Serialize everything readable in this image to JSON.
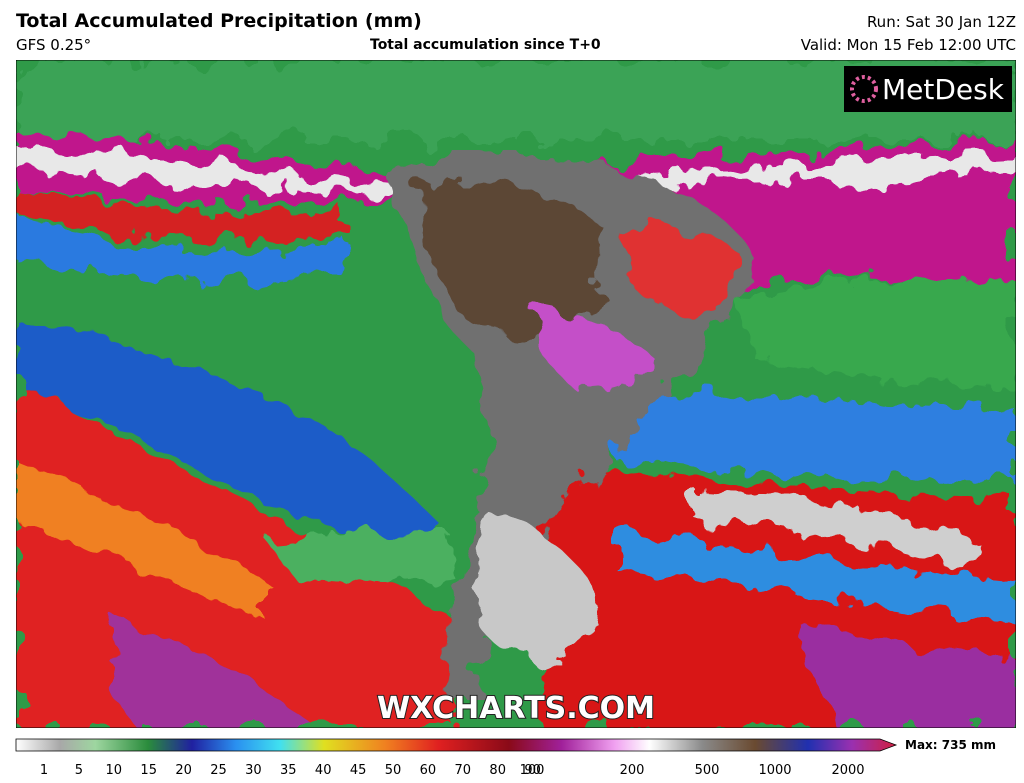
{
  "header": {
    "title": "Total Accumulated Precipitation (mm)",
    "model": "GFS 0.25°",
    "subtitle": "Total accumulation since T+0",
    "run": "Run: Sat 30 Jan 12Z",
    "valid": "Valid: Mon 15 Feb 12:00 UTC"
  },
  "logo": "MetDesk",
  "watermark": "WXCHARTS.COM",
  "legend": {
    "ticks": [
      1,
      5,
      10,
      15,
      20,
      25,
      30,
      35,
      40,
      45,
      50,
      60,
      70,
      80,
      90,
      100,
      200,
      500,
      1000,
      2000
    ],
    "max_label": "Max: 735 mm"
  }
}
